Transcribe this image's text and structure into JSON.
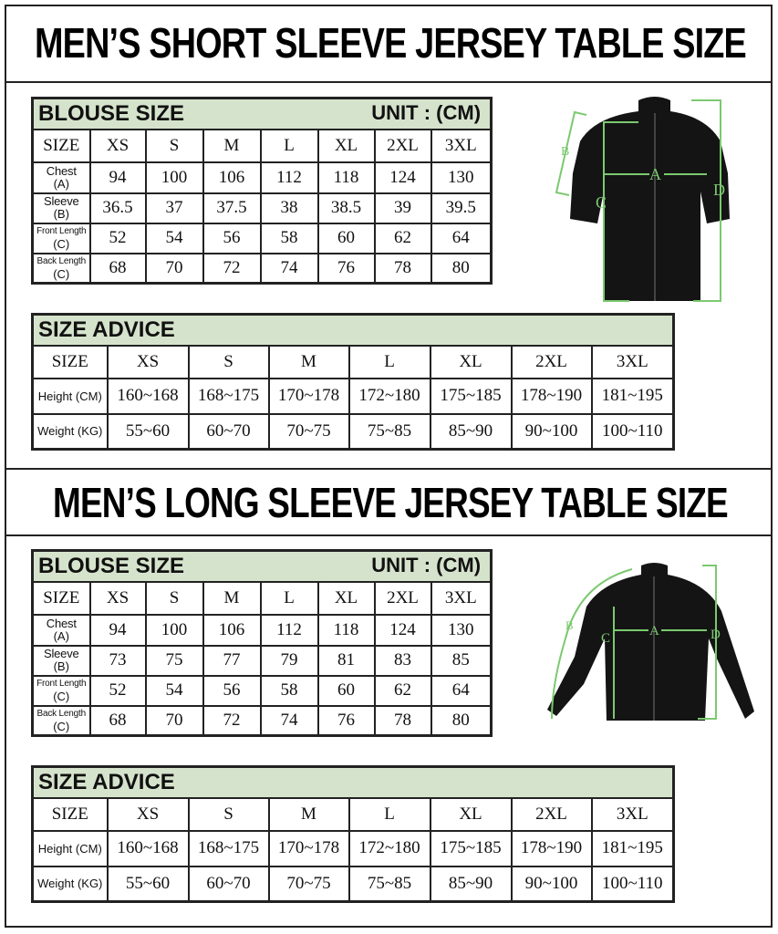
{
  "sections": [
    {
      "title": "MEN’S SHORT SLEEVE  JERSEY TABLE SIZE",
      "blouse": {
        "title": "BLOUSE SIZE",
        "unit": "UNIT : (CM)",
        "sizes": [
          "SIZE",
          "XS",
          "S",
          "M",
          "L",
          "XL",
          "2XL",
          "3XL"
        ],
        "rows": [
          {
            "label": "Chest",
            "sub": "(A)",
            "values": [
              "94",
              "100",
              "106",
              "112",
              "118",
              "124",
              "130"
            ]
          },
          {
            "label": "Sleeve",
            "sub": "(B)",
            "values": [
              "36.5",
              "37",
              "37.5",
              "38",
              "38.5",
              "39",
              "39.5"
            ]
          },
          {
            "label": "Front Length",
            "sub": "(C)",
            "values": [
              "52",
              "54",
              "56",
              "58",
              "60",
              "62",
              "64"
            ]
          },
          {
            "label": "Back Length",
            "sub": "(C)",
            "values": [
              "68",
              "70",
              "72",
              "74",
              "76",
              "78",
              "80"
            ]
          }
        ]
      },
      "advice": {
        "title": "SIZE ADVICE",
        "sizes": [
          "SIZE",
          "XS",
          "S",
          "M",
          "L",
          "XL",
          "2XL",
          "3XL"
        ],
        "rows": [
          {
            "label": "Height (CM)",
            "values": [
              "160~168",
              "168~175",
              "170~178",
              "172~180",
              "175~185",
              "178~190",
              "181~195"
            ]
          },
          {
            "label": "Weight (KG)",
            "values": [
              "55~60",
              "60~70",
              "70~75",
              "75~85",
              "85~90",
              "90~100",
              "100~110"
            ]
          }
        ]
      },
      "diagram": {
        "labels": [
          "A",
          "B",
          "C",
          "D"
        ]
      }
    },
    {
      "title": "MEN’S LONG SLEEVE JERSEY TABLE SIZE",
      "blouse": {
        "title": "BLOUSE SIZE",
        "unit": "UNIT : (CM)",
        "sizes": [
          "SIZE",
          "XS",
          "S",
          "M",
          "L",
          "XL",
          "2XL",
          "3XL"
        ],
        "rows": [
          {
            "label": "Chest",
            "sub": "(A)",
            "values": [
              "94",
              "100",
              "106",
              "112",
              "118",
              "124",
              "130"
            ]
          },
          {
            "label": "Sleeve",
            "sub": "(B)",
            "values": [
              "73",
              "75",
              "77",
              "79",
              "81",
              "83",
              "85"
            ]
          },
          {
            "label": "Front Length",
            "sub": "(C)",
            "values": [
              "52",
              "54",
              "56",
              "58",
              "60",
              "62",
              "64"
            ]
          },
          {
            "label": "Back Length",
            "sub": "(C)",
            "values": [
              "68",
              "70",
              "72",
              "74",
              "76",
              "78",
              "80"
            ]
          }
        ]
      },
      "advice": {
        "title": "SIZE ADVICE",
        "sizes": [
          "SIZE",
          "XS",
          "S",
          "M",
          "L",
          "XL",
          "2XL",
          "3XL"
        ],
        "rows": [
          {
            "label": "Height (CM)",
            "values": [
              "160~168",
              "168~175",
              "170~178",
              "172~180",
              "175~185",
              "178~190",
              "181~195"
            ]
          },
          {
            "label": "Weight (KG)",
            "values": [
              "55~60",
              "60~70",
              "70~75",
              "75~85",
              "85~90",
              "90~100",
              "100~110"
            ]
          }
        ]
      },
      "diagram": {
        "labels": [
          "A",
          "B",
          "C",
          "D"
        ]
      }
    }
  ],
  "colors": {
    "header_bg": "#d6e3cc",
    "measure_line": "#7bc96f"
  }
}
